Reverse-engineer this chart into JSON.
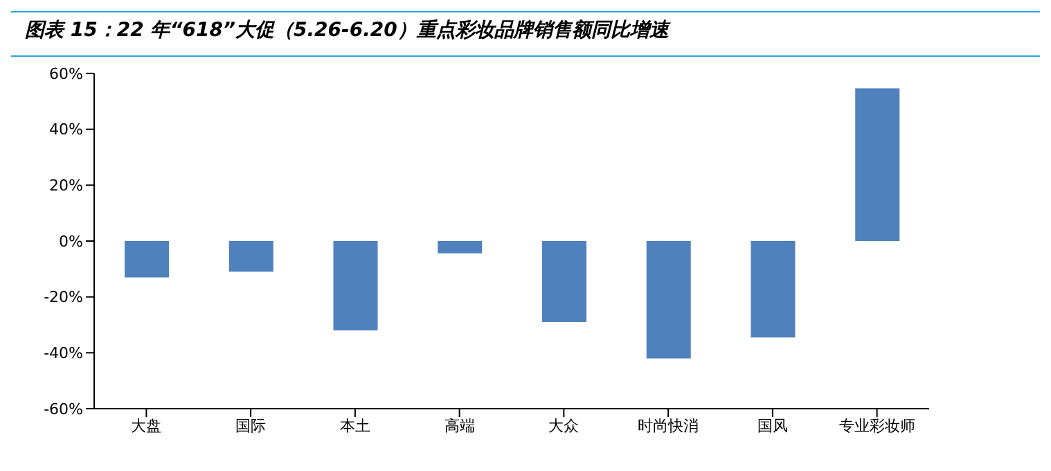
{
  "chart_data": {
    "type": "bar",
    "title": "图表 15：22 年“618”大促（5.26-6.20）重点彩妆品牌销售额同比增速",
    "categories": [
      "大盘",
      "国际",
      "本土",
      "高端",
      "大众",
      "时尚快消",
      "国风",
      "专业彩妆师"
    ],
    "values": [
      -13,
      -11,
      -32,
      -4.4,
      -29,
      -42,
      -34.5,
      54.7
    ],
    "color": "#4f81bd",
    "ylim": [
      -60,
      60
    ],
    "yticks": [
      {
        "value": -60,
        "label": "-60%"
      },
      {
        "value": -40,
        "label": "-40%"
      },
      {
        "value": -20,
        "label": "-20%"
      },
      {
        "value": 0,
        "label": "0%"
      },
      {
        "value": 20,
        "label": "20%"
      },
      {
        "value": 40,
        "label": "40%"
      },
      {
        "value": 60,
        "label": "60%"
      }
    ],
    "legend": false
  }
}
